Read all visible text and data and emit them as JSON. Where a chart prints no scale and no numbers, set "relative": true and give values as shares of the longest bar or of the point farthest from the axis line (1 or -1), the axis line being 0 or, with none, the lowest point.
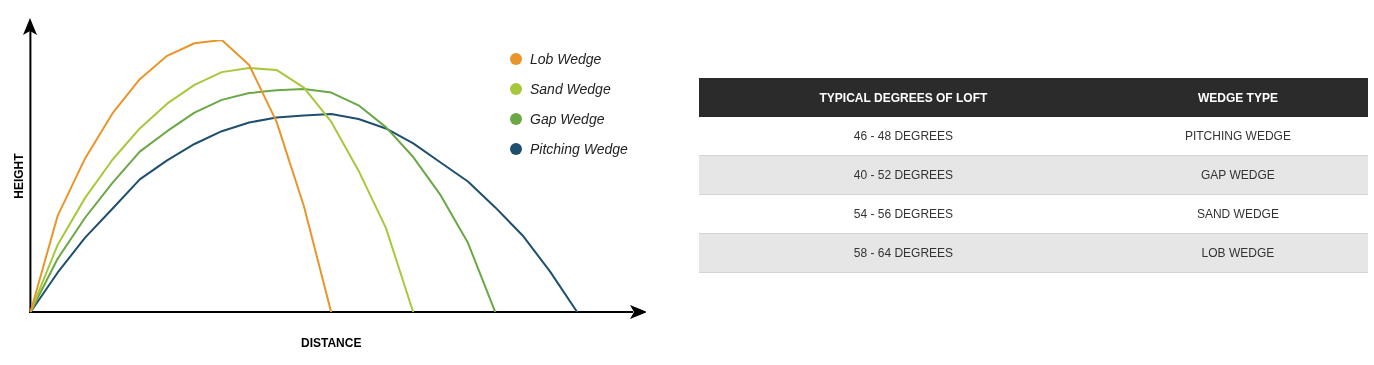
{
  "chart_data": [
    {
      "type": "line",
      "relative": true,
      "xlabel": "DISTANCE",
      "ylabel": "HEIGHT",
      "legend": "top right",
      "marker": "none",
      "line_style": "solid",
      "categories": [
        null,
        null,
        null,
        null,
        null,
        null,
        null,
        null,
        null,
        null,
        null,
        null,
        null,
        null,
        null,
        null,
        null,
        null,
        null,
        null,
        null,
        null,
        null
      ],
      "series": [
        {
          "name": "Lob Wedge",
          "color": "#e8952a",
          "values": [
            0,
            0.355,
            0.565,
            0.73,
            0.856,
            0.942,
            0.988,
            1,
            0.908,
            0.7,
            0.39,
            0,
            null,
            null,
            null,
            null,
            null,
            null,
            null,
            null,
            null,
            null,
            null
          ]
        },
        {
          "name": "Sand Wedge",
          "color": "#a8c83c",
          "values": [
            0,
            0.248,
            0.42,
            0.56,
            0.675,
            0.766,
            0.835,
            0.882,
            0.897,
            0.89,
            0.825,
            0.7,
            0.52,
            0.31,
            0,
            null,
            null,
            null,
            null,
            null,
            null,
            null,
            null
          ]
        },
        {
          "name": "Gap Wedge",
          "color": "#6aa845",
          "values": [
            0,
            0.197,
            0.347,
            0.475,
            0.59,
            0.665,
            0.733,
            0.78,
            0.805,
            0.815,
            0.82,
            0.807,
            0.76,
            0.68,
            0.57,
            0.43,
            0.255,
            0,
            null,
            null,
            null,
            null,
            null
          ]
        },
        {
          "name": "Pitching Wedge",
          "color": "#1e4f6e",
          "values": [
            0,
            0.146,
            0.274,
            0.38,
            0.488,
            0.558,
            0.618,
            0.665,
            0.697,
            0.715,
            0.723,
            0.728,
            0.71,
            0.675,
            0.62,
            0.55,
            0.48,
            0.385,
            0.282,
            0.15,
            0,
            null,
            null
          ]
        }
      ]
    },
    {
      "type": "other",
      "annotations": [
        "TYPICAL DEGREES OF LOFT",
        "WEDGE TYPE",
        "46 - 48 DEGREES",
        "PITCHING WEDGE",
        "40 - 52 DEGREES",
        "GAP WEDGE",
        "54 - 56 DEGREES",
        "SAND WEDGE",
        "58 - 64 DEGREES",
        "LOB WEDGE"
      ]
    }
  ]
}
